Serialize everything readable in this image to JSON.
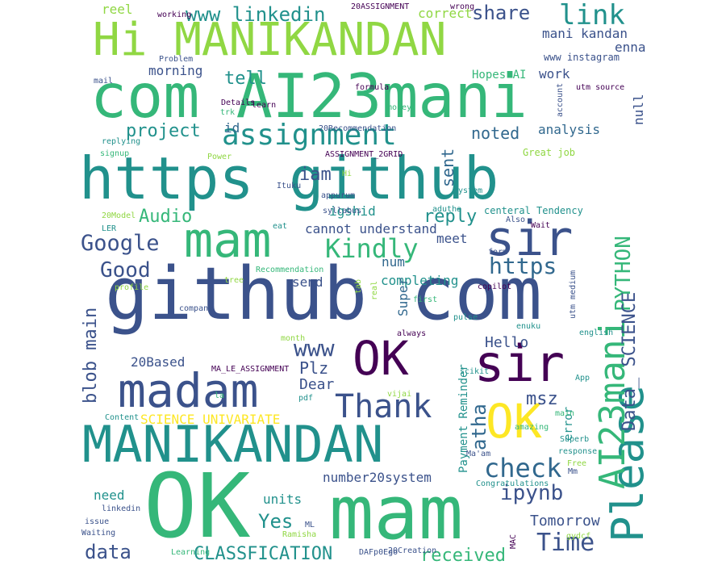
{
  "palette": {
    "background": "#ffffff",
    "purple": "#440154",
    "indigo": "#3b528b",
    "blue": "#31688e",
    "teal": "#21918c",
    "green": "#35b779",
    "lime": "#90d743",
    "yellow": "#fde725"
  },
  "words": [
    "OK",
    "mam",
    "https github",
    "github com",
    "com AI23mani",
    "Hi MANIKANDAN",
    "MANIKANDAN",
    "madam",
    "sir",
    "OK",
    "sir",
    "mam",
    "Please",
    "OK",
    "AI23mani",
    "assignment",
    "Kindly",
    "Thank",
    "https",
    "PYTHON",
    "check",
    "Time",
    "Google",
    "Good",
    "project",
    "iam",
    "www linkedin",
    "link",
    "share",
    "tell",
    "reply",
    "Audio",
    "blob main",
    "Data_ SCIENCE",
    "data",
    "CLASSFICATION",
    "received",
    "Yes",
    "msz",
    "ipynb",
    "Tomorrow",
    "noted",
    "analysis",
    "atha",
    "sent",
    "null",
    "work",
    "mani kandan",
    "enna",
    "morning",
    "www",
    "Plz",
    "Dear",
    "Hello",
    "completing",
    "send",
    "meet",
    "num",
    "cannot understand",
    "igshid",
    "id",
    "number20system",
    "SCIENCE UNIVARIATE",
    "20Based",
    "units",
    "need",
    "Super",
    "correct",
    "reel",
    "www instagram",
    "Hopes AI",
    "centeral Tendency",
    "Great job",
    "Payment Reminder",
    "error",
    "20ASSIGNMENT",
    "20Recommendation",
    "ASSIGNMENT_2GRID",
    "MA_LE_ASSIGNMENT",
    "Recommendation",
    "Congratulations",
    "response",
    "DAFp0Ego",
    "20Creation",
    "Learning",
    "Waiting",
    "issue",
    "linkedin",
    "Ramisha",
    "ML",
    "Ma'am",
    "Superb",
    "Free",
    "Mm",
    "amazing",
    "main",
    "english",
    "enuku",
    "always",
    "pulse",
    "copilot",
    "utm medium",
    "form",
    "Wait",
    "Also",
    "syllabus",
    "appurum",
    "Ituku",
    "Hi",
    "Power",
    "signup",
    "replying",
    "mail",
    "Details",
    "learn",
    "trk",
    "Problem",
    "working",
    "wrong",
    "formula",
    "money",
    "account",
    "utm source",
    "LER",
    "20Model",
    "profile",
    "company",
    "tree",
    "tab",
    "real",
    "first",
    "vijai",
    "scikit",
    "pdf",
    "Content",
    "App",
    "MAC",
    "gydcf",
    "adutha",
    "system",
    "eat",
    "month",
    "la",
    "Aadhar"
  ]
}
